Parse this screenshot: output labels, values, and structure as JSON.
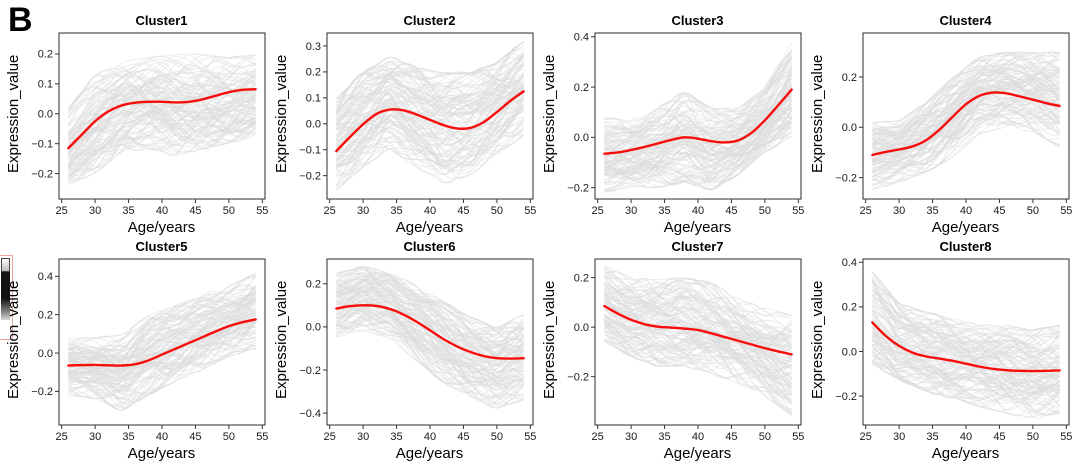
{
  "figure_label": "B",
  "colors": {
    "trend": "#f80d0d",
    "spaghetti": "#dcdcdc",
    "panel_border": "#2b2b2b",
    "tick": "#333333",
    "text": "#1a1a1a"
  },
  "spaghetti_count": 110,
  "chart_data": [
    {
      "type": "line",
      "title": "Cluster1",
      "xlabel": "Age/years",
      "ylabel": "Expression_value",
      "x_ticks": [
        25,
        30,
        35,
        40,
        45,
        50,
        55
      ],
      "y_ticks": [
        0.2,
        0.1,
        0.0,
        -0.1,
        -0.2
      ],
      "xlim": [
        24.6,
        55.4
      ],
      "ylim": [
        -0.285,
        0.27
      ],
      "x": [
        26,
        28,
        30,
        32,
        34,
        36,
        38,
        40,
        42,
        44,
        46,
        48,
        50,
        52,
        54
      ],
      "trend": [
        -0.115,
        -0.07,
        -0.025,
        0.008,
        0.028,
        0.037,
        0.04,
        0.04,
        0.038,
        0.04,
        0.048,
        0.06,
        0.072,
        0.08,
        0.082
      ],
      "band_x": [
        26,
        30,
        34,
        38,
        42,
        46,
        50,
        54
      ],
      "band_lower": [
        -0.24,
        -0.2,
        -0.13,
        -0.12,
        -0.14,
        -0.12,
        -0.1,
        -0.08
      ],
      "band_upper": [
        0.02,
        0.13,
        0.18,
        0.19,
        0.2,
        0.2,
        0.19,
        0.2
      ]
    },
    {
      "type": "line",
      "title": "Cluster2",
      "xlabel": "Age/years",
      "ylabel": "Expression_value",
      "x_ticks": [
        25,
        30,
        35,
        40,
        45,
        50,
        55
      ],
      "y_ticks": [
        0.3,
        0.2,
        0.1,
        0.0,
        -0.1,
        -0.2
      ],
      "xlim": [
        24.6,
        55.4
      ],
      "ylim": [
        -0.29,
        0.35
      ],
      "x": [
        26,
        28,
        30,
        32,
        34,
        36,
        38,
        40,
        42,
        44,
        46,
        48,
        50,
        52,
        54
      ],
      "trend": [
        -0.105,
        -0.052,
        -0.002,
        0.038,
        0.055,
        0.052,
        0.036,
        0.015,
        -0.005,
        -0.018,
        -0.016,
        0.006,
        0.045,
        0.088,
        0.125
      ],
      "band_x": [
        26,
        30,
        34,
        38,
        42,
        46,
        50,
        54
      ],
      "band_lower": [
        -0.26,
        -0.17,
        -0.1,
        -0.17,
        -0.23,
        -0.2,
        -0.12,
        -0.05
      ],
      "band_upper": [
        0.1,
        0.2,
        0.26,
        0.22,
        0.2,
        0.2,
        0.24,
        0.32
      ]
    },
    {
      "type": "line",
      "title": "Cluster3",
      "xlabel": "Age/years",
      "ylabel": "Expression_value",
      "x_ticks": [
        25,
        30,
        35,
        40,
        45,
        50,
        55
      ],
      "y_ticks": [
        0.4,
        0.2,
        0.0,
        -0.2
      ],
      "xlim": [
        24.6,
        55.4
      ],
      "ylim": [
        -0.245,
        0.415
      ],
      "x": [
        26,
        28,
        30,
        32,
        34,
        36,
        38,
        40,
        42,
        44,
        46,
        48,
        50,
        52,
        54
      ],
      "trend": [
        -0.065,
        -0.06,
        -0.05,
        -0.038,
        -0.024,
        -0.01,
        0.0,
        -0.005,
        -0.015,
        -0.02,
        -0.012,
        0.018,
        0.068,
        0.128,
        0.19
      ],
      "band_x": [
        26,
        30,
        34,
        38,
        42,
        46,
        50,
        54
      ],
      "band_lower": [
        -0.22,
        -0.2,
        -0.2,
        -0.18,
        -0.21,
        -0.15,
        -0.06,
        0.0
      ],
      "band_upper": [
        0.08,
        0.07,
        0.12,
        0.18,
        0.12,
        0.12,
        0.2,
        0.38
      ]
    },
    {
      "type": "line",
      "title": "Cluster4",
      "xlabel": "Age/years",
      "ylabel": "Expression_value",
      "x_ticks": [
        25,
        30,
        35,
        40,
        45,
        50,
        55
      ],
      "y_ticks": [
        0.2,
        0.0,
        -0.2
      ],
      "xlim": [
        24.6,
        55.4
      ],
      "ylim": [
        -0.285,
        0.375
      ],
      "x": [
        26,
        28,
        30,
        32,
        34,
        36,
        38,
        40,
        42,
        44,
        46,
        48,
        50,
        52,
        54
      ],
      "trend": [
        -0.11,
        -0.098,
        -0.088,
        -0.076,
        -0.052,
        -0.01,
        0.042,
        0.092,
        0.125,
        0.138,
        0.135,
        0.123,
        0.11,
        0.096,
        0.085
      ],
      "band_x": [
        26,
        30,
        34,
        38,
        42,
        46,
        50,
        54
      ],
      "band_lower": [
        -0.25,
        -0.22,
        -0.18,
        -0.12,
        -0.03,
        0.0,
        -0.02,
        -0.08
      ],
      "band_upper": [
        0.02,
        0.03,
        0.1,
        0.2,
        0.28,
        0.3,
        0.3,
        0.3
      ]
    },
    {
      "type": "line",
      "title": "Cluster5",
      "xlabel": "Age/years",
      "ylabel": "Expression_value",
      "x_ticks": [
        25,
        30,
        35,
        40,
        45,
        50,
        55
      ],
      "y_ticks": [
        0.4,
        0.2,
        0.0,
        -0.2
      ],
      "xlim": [
        24.6,
        55.4
      ],
      "ylim": [
        -0.375,
        0.49
      ],
      "x": [
        26,
        28,
        30,
        32,
        34,
        36,
        38,
        40,
        42,
        44,
        46,
        48,
        50,
        52,
        54
      ],
      "trend": [
        -0.065,
        -0.063,
        -0.062,
        -0.064,
        -0.065,
        -0.058,
        -0.038,
        -0.008,
        0.022,
        0.052,
        0.082,
        0.112,
        0.14,
        0.16,
        0.175
      ],
      "band_x": [
        26,
        30,
        34,
        38,
        42,
        46,
        50,
        54
      ],
      "band_lower": [
        -0.22,
        -0.24,
        -0.3,
        -0.22,
        -0.15,
        -0.09,
        -0.02,
        0.02
      ],
      "band_upper": [
        0.08,
        0.08,
        0.1,
        0.2,
        0.25,
        0.3,
        0.35,
        0.42
      ]
    },
    {
      "type": "line",
      "title": "Cluster6",
      "xlabel": "Age/years",
      "ylabel": "Expression_value",
      "x_ticks": [
        25,
        30,
        35,
        40,
        45,
        50,
        55
      ],
      "y_ticks": [
        0.2,
        0.0,
        -0.2,
        -0.4
      ],
      "xlim": [
        24.6,
        55.4
      ],
      "ylim": [
        -0.455,
        0.315
      ],
      "x": [
        26,
        28,
        30,
        32,
        34,
        36,
        38,
        40,
        42,
        44,
        46,
        48,
        50,
        52,
        54
      ],
      "trend": [
        0.085,
        0.096,
        0.1,
        0.097,
        0.083,
        0.058,
        0.024,
        -0.016,
        -0.056,
        -0.09,
        -0.116,
        -0.135,
        -0.145,
        -0.147,
        -0.145
      ],
      "band_x": [
        26,
        30,
        34,
        38,
        42,
        46,
        50,
        54
      ],
      "band_lower": [
        -0.05,
        -0.02,
        -0.06,
        -0.16,
        -0.26,
        -0.33,
        -0.38,
        -0.34
      ],
      "band_upper": [
        0.25,
        0.28,
        0.26,
        0.19,
        0.12,
        0.05,
        0.0,
        0.06
      ]
    },
    {
      "type": "line",
      "title": "Cluster7",
      "xlabel": "Age/years",
      "ylabel": "Expression_value",
      "x_ticks": [
        25,
        30,
        35,
        40,
        45,
        50,
        55
      ],
      "y_ticks": [
        0.2,
        0.0,
        -0.2
      ],
      "xlim": [
        24.6,
        55.4
      ],
      "ylim": [
        -0.395,
        0.275
      ],
      "x": [
        26,
        28,
        30,
        32,
        34,
        36,
        38,
        40,
        42,
        44,
        46,
        48,
        50,
        52,
        54
      ],
      "trend": [
        0.085,
        0.055,
        0.03,
        0.012,
        0.002,
        -0.002,
        -0.006,
        -0.012,
        -0.025,
        -0.04,
        -0.055,
        -0.07,
        -0.085,
        -0.098,
        -0.11
      ],
      "band_x": [
        26,
        30,
        34,
        38,
        42,
        46,
        50,
        54
      ],
      "band_lower": [
        -0.06,
        -0.12,
        -0.16,
        -0.16,
        -0.19,
        -0.23,
        -0.28,
        -0.36
      ],
      "band_upper": [
        0.25,
        0.2,
        0.2,
        0.2,
        0.18,
        0.12,
        0.08,
        0.05
      ]
    },
    {
      "type": "line",
      "title": "Cluster8",
      "xlabel": "Age/years",
      "ylabel": "Expression_value",
      "x_ticks": [
        25,
        30,
        35,
        40,
        45,
        50,
        55
      ],
      "y_ticks": [
        0.4,
        0.2,
        0.0,
        -0.2
      ],
      "xlim": [
        24.6,
        55.4
      ],
      "ylim": [
        -0.33,
        0.415
      ],
      "x": [
        26,
        28,
        30,
        32,
        34,
        36,
        38,
        40,
        42,
        44,
        46,
        48,
        50,
        52,
        54
      ],
      "trend": [
        0.13,
        0.07,
        0.025,
        -0.005,
        -0.022,
        -0.032,
        -0.042,
        -0.055,
        -0.068,
        -0.078,
        -0.084,
        -0.087,
        -0.088,
        -0.087,
        -0.085
      ],
      "band_x": [
        26,
        30,
        34,
        38,
        42,
        46,
        50,
        54
      ],
      "band_lower": [
        -0.06,
        -0.13,
        -0.18,
        -0.21,
        -0.25,
        -0.28,
        -0.3,
        -0.28
      ],
      "band_upper": [
        0.36,
        0.22,
        0.18,
        0.15,
        0.12,
        0.12,
        0.1,
        0.12
      ]
    }
  ]
}
